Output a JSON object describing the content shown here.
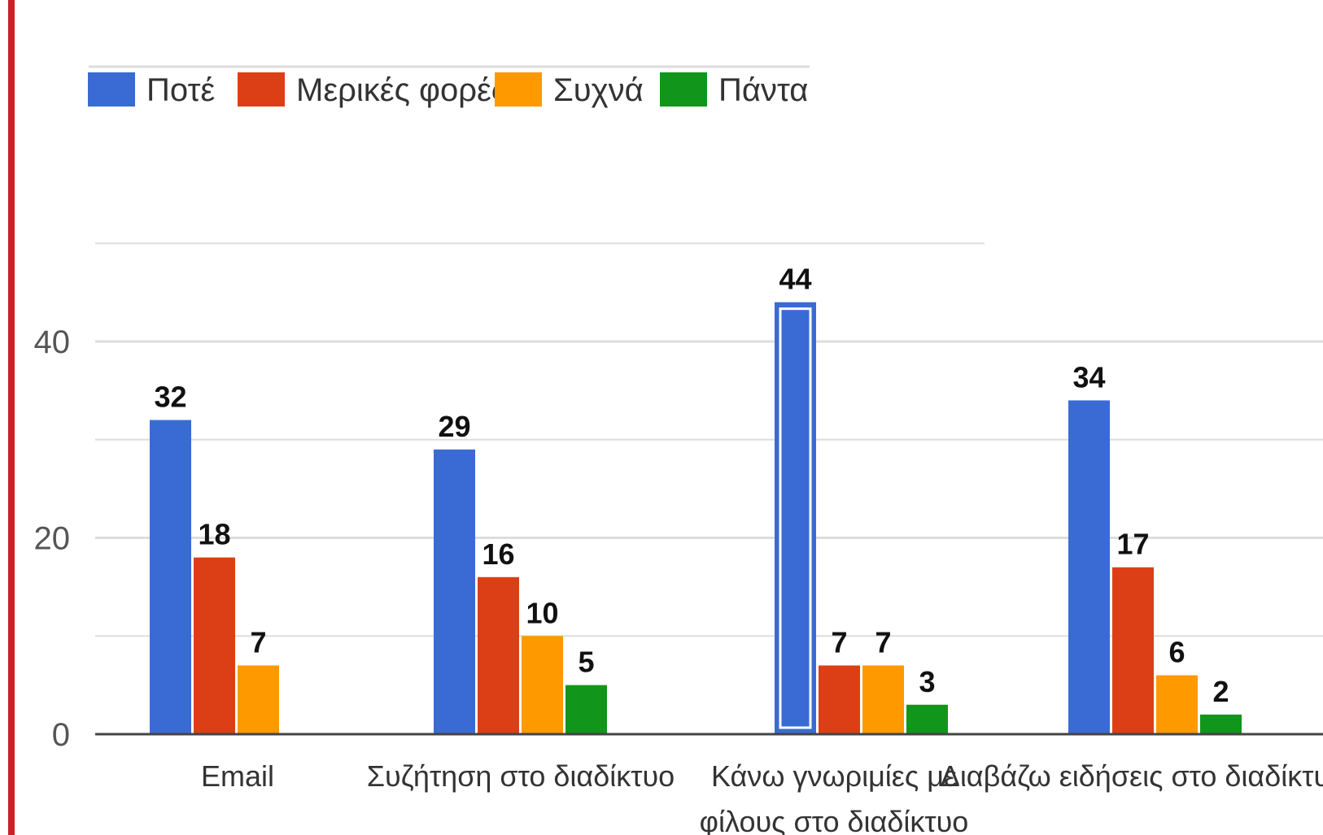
{
  "chart_data": {
    "type": "bar",
    "title": "",
    "xlabel": "",
    "ylabel": "",
    "categories": [
      [
        "Email"
      ],
      [
        "Συζήτηση στο διαδίκτυο"
      ],
      [
        "Κάνω γνωριμίες με",
        "φίλους στο διαδίκτυο"
      ],
      [
        "Διαβάζω ειδήσεις στο διαδίκτυο."
      ]
    ],
    "series": [
      {
        "name": "Ποτέ",
        "color": "#3a6bd4",
        "values": [
          32,
          29,
          44,
          34
        ]
      },
      {
        "name": "Μερικές φορές",
        "color": "#dc3f16",
        "values": [
          18,
          16,
          7,
          17
        ]
      },
      {
        "name": "Συχνά",
        "color": "#ff9900",
        "values": [
          7,
          10,
          7,
          6
        ]
      },
      {
        "name": "Πάντα",
        "color": "#11951a",
        "values": [
          0,
          5,
          3,
          2
        ]
      }
    ],
    "yticks": [
      0,
      20,
      40
    ],
    "ylim": [
      0,
      50
    ],
    "grid": true,
    "legend": "top-left",
    "highlighted": {
      "series": 0,
      "category": 2
    }
  },
  "colors": {
    "frame_accent": "#cc1f26",
    "axis": "#444444",
    "grid": "#dddddd"
  }
}
